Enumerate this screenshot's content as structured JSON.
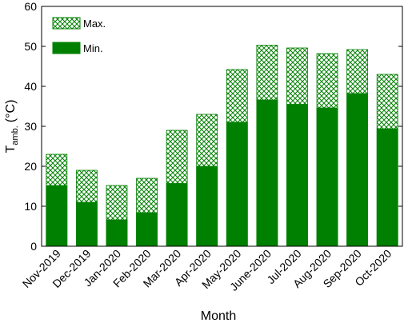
{
  "chart_data": {
    "type": "bar",
    "mode": "overlap",
    "x_label": "Month",
    "y_label": {
      "main": "T",
      "sub": "amb.",
      "unit": "(°C)"
    },
    "categories": [
      "Nov-2019",
      "Dec-2019",
      "Jan-2020",
      "Feb-2020",
      "Mar-2020",
      "Apr-2020",
      "May-2020",
      "June-2020",
      "Jul-2020",
      "Aug-2020",
      "Sep-2020",
      "Oct-2020"
    ],
    "series": [
      {
        "name": "Max.",
        "color": "#008000",
        "pattern": "crosshatch",
        "values": [
          23,
          19,
          15.2,
          17,
          29,
          33,
          44.2,
          50.3,
          49.6,
          48.2,
          49.2,
          43
        ]
      },
      {
        "name": "Min.",
        "color": "#008000",
        "pattern": "solid",
        "values": [
          15.2,
          11,
          6.6,
          8.4,
          15.7,
          20,
          31,
          36.6,
          35.5,
          34.6,
          38.2,
          29.4
        ]
      }
    ],
    "ylim": [
      0,
      60
    ],
    "yticks": [
      0,
      10,
      20,
      30,
      40,
      50,
      60
    ],
    "legend": "upper left",
    "grid": false
  }
}
